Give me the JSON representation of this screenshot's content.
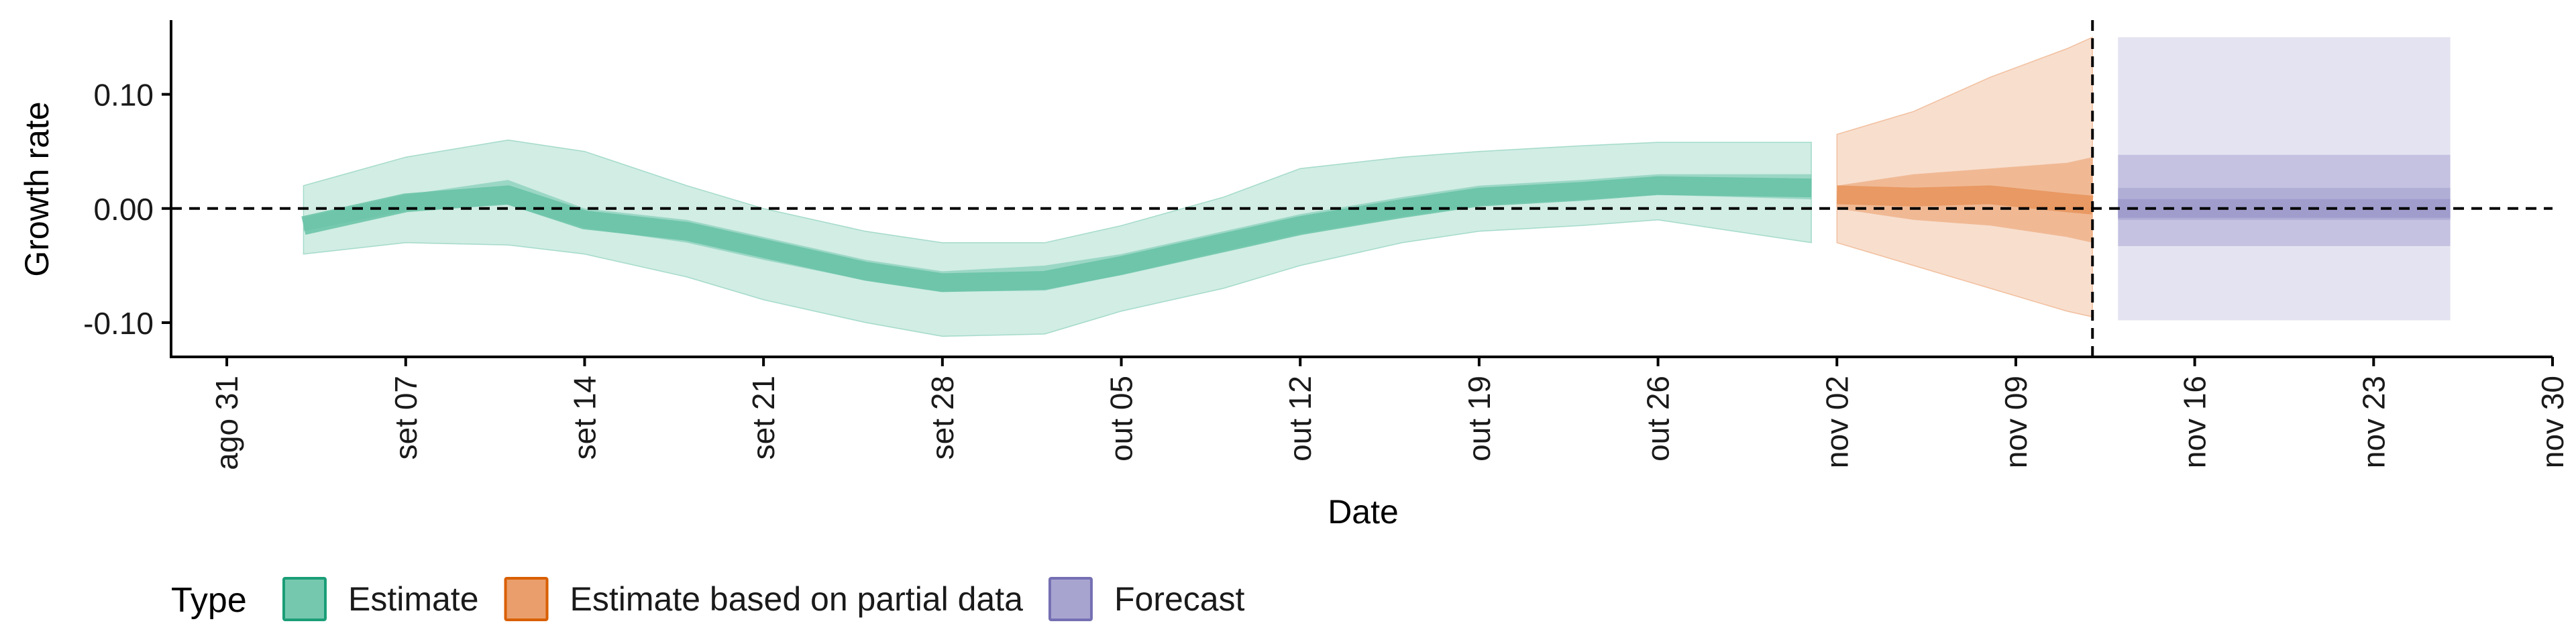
{
  "chart_data": {
    "type": "area",
    "title": "",
    "xlabel": "Date",
    "ylabel": "Growth rate",
    "x_ticks": [
      "ago 31",
      "set 07",
      "set 14",
      "set 21",
      "set 28",
      "out 05",
      "out 12",
      "out 19",
      "out 26",
      "nov 02",
      "nov 09",
      "nov 16",
      "nov 23",
      "nov 30"
    ],
    "x_range": [
      "2020-08-30",
      "2020-11-30"
    ],
    "y_ticks": [
      "0.10",
      "0.00",
      "-0.10"
    ],
    "ylim": [
      -0.13,
      0.165
    ],
    "reference_lines": {
      "horizontal_y": 0,
      "vertical_date": "2020-11-12"
    },
    "legend": {
      "title": "Type",
      "placement": "bottom-left"
    },
    "colors": {
      "Estimate": "#66c2a5",
      "Estimate based on partial data": "#e8935b",
      "Forecast": "#9e9acb",
      "Estimate_border": "#1b9e77",
      "Estimate based on partial data_border": "#d95f02",
      "Forecast_border": "#7570b3"
    },
    "series": [
      {
        "name": "Estimate",
        "x": [
          "2020-09-03",
          "2020-09-07",
          "2020-09-11",
          "2020-09-14",
          "2020-09-18",
          "2020-09-21",
          "2020-09-25",
          "2020-09-28",
          "2020-10-02",
          "2020-10-05",
          "2020-10-09",
          "2020-10-12",
          "2020-10-16",
          "2020-10-19",
          "2020-10-23",
          "2020-10-26",
          "2020-11-01"
        ],
        "median": [
          -0.015,
          0.005,
          0.012,
          -0.01,
          -0.02,
          -0.035,
          -0.055,
          -0.065,
          -0.063,
          -0.05,
          -0.03,
          -0.015,
          0.0,
          0.01,
          0.015,
          0.02,
          0.018
        ],
        "lower_50": [
          -0.02,
          -0.002,
          0.003,
          -0.017,
          -0.03,
          -0.045,
          -0.063,
          -0.073,
          -0.072,
          -0.058,
          -0.037,
          -0.022,
          -0.007,
          0.003,
          0.008,
          0.012,
          0.008
        ],
        "upper_50": [
          -0.008,
          0.012,
          0.025,
          0.0,
          -0.01,
          -0.025,
          -0.045,
          -0.055,
          -0.05,
          -0.04,
          -0.02,
          -0.005,
          0.01,
          0.02,
          0.025,
          0.03,
          0.03
        ],
        "lower_90": [
          -0.04,
          -0.03,
          -0.032,
          -0.04,
          -0.06,
          -0.08,
          -0.1,
          -0.112,
          -0.11,
          -0.09,
          -0.07,
          -0.05,
          -0.03,
          -0.02,
          -0.015,
          -0.01,
          -0.03
        ],
        "upper_90": [
          0.02,
          0.045,
          0.06,
          0.05,
          0.02,
          0.0,
          -0.02,
          -0.03,
          -0.03,
          -0.015,
          0.01,
          0.035,
          0.045,
          0.05,
          0.055,
          0.058,
          0.058
        ]
      },
      {
        "name": "Estimate based on partial data",
        "x": [
          "2020-11-02",
          "2020-11-05",
          "2020-11-08",
          "2020-11-11",
          "2020-11-12"
        ],
        "median": [
          0.012,
          0.01,
          0.012,
          0.005,
          0.003
        ],
        "lower_50": [
          0.0,
          -0.01,
          -0.015,
          -0.025,
          -0.03
        ],
        "upper_50": [
          0.02,
          0.03,
          0.035,
          0.04,
          0.045
        ],
        "lower_90": [
          -0.03,
          -0.05,
          -0.07,
          -0.09,
          -0.095
        ],
        "upper_90": [
          0.065,
          0.085,
          0.115,
          0.14,
          0.15
        ]
      },
      {
        "name": "Forecast",
        "x": [
          "2020-11-13",
          "2020-11-26"
        ],
        "median": [
          0.0,
          0.0
        ],
        "lower_50": [
          -0.01,
          -0.01
        ],
        "upper_50": [
          0.018,
          0.018
        ],
        "lower_90": [
          -0.033,
          -0.033
        ],
        "upper_90": [
          0.047,
          0.047
        ],
        "lower_outer": [
          -0.098,
          -0.098
        ],
        "upper_outer": [
          0.15,
          0.15
        ]
      }
    ]
  }
}
